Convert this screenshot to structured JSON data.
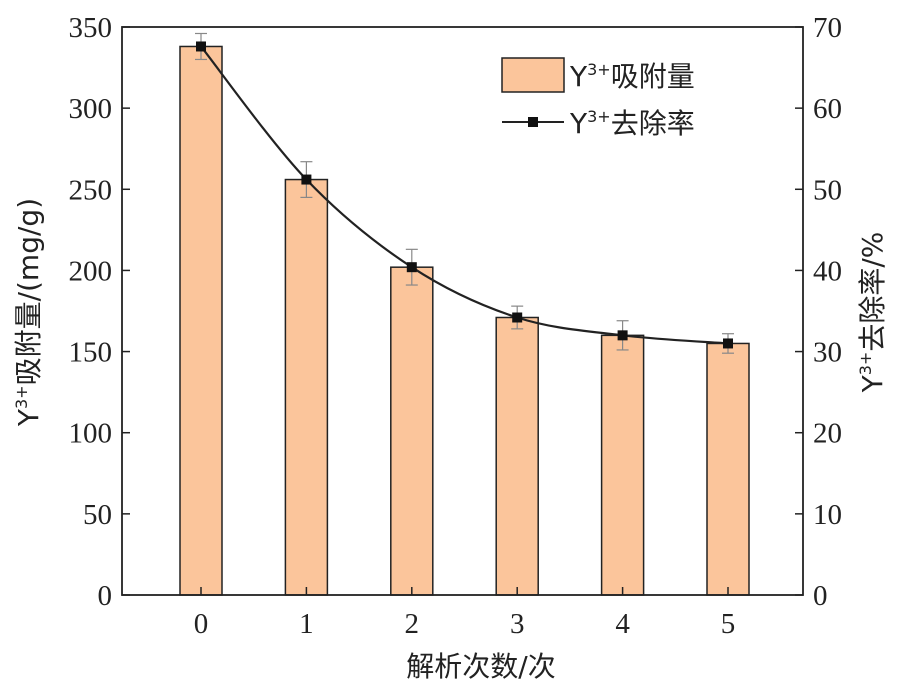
{
  "chart_data": {
    "type": "bar",
    "categories": [
      "0",
      "1",
      "2",
      "3",
      "4",
      "5"
    ],
    "series": [
      {
        "name": "Y3+吸附量",
        "kind": "bar",
        "axis": "left",
        "values": [
          338,
          256,
          202,
          171,
          160,
          155
        ],
        "errors": [
          8,
          11,
          11,
          7,
          9,
          6
        ],
        "color": "#FBC59B"
      },
      {
        "name": "Y3+去除率",
        "kind": "line",
        "axis": "right",
        "values": [
          67.6,
          51.2,
          40.4,
          34.2,
          32.0,
          31.0
        ],
        "color": "#222222"
      }
    ],
    "xlabel": "解析次数/次",
    "ylabel_left": {
      "base": "Y",
      "sup": "3+",
      "rest": "吸附量/(mg/g)"
    },
    "ylabel_right": {
      "base": "Y",
      "sup": "3+",
      "rest": "去除率/%"
    },
    "legend": [
      {
        "base": "Y",
        "sup": "3+",
        "rest": "吸附量"
      },
      {
        "base": "Y",
        "sup": "3+",
        "rest": "去除率"
      }
    ],
    "ylim_left": [
      0,
      350
    ],
    "ylim_right": [
      0,
      70
    ],
    "yticks_left": [
      "0",
      "50",
      "100",
      "150",
      "200",
      "250",
      "300",
      "350"
    ],
    "yticks_right": [
      "0",
      "10",
      "20",
      "30",
      "40",
      "50",
      "60",
      "70"
    ],
    "legend_position": "top-right",
    "grid": false
  }
}
